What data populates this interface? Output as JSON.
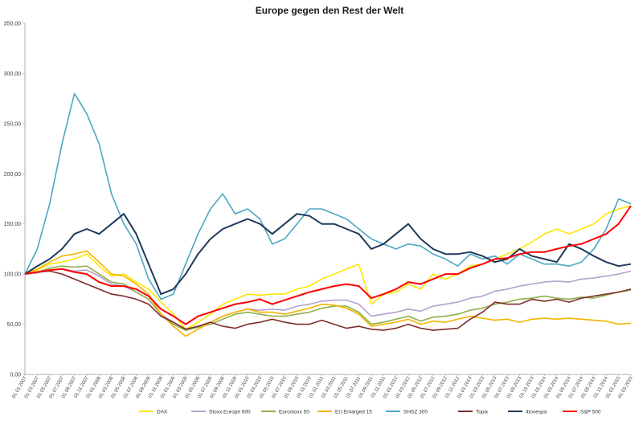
{
  "chart_data": {
    "type": "line",
    "title": "Europe gegen den Rest der Welt",
    "xlabel": "",
    "ylabel": "",
    "ylim": [
      0,
      350
    ],
    "yticks": [
      "0,00",
      "50,00",
      "100,00",
      "150,00",
      "200,00",
      "250,00",
      "300,00",
      "350,00"
    ],
    "x_dates": [
      "01.01.2007",
      "01.03.2007",
      "01.05.2007",
      "01.07.2007",
      "01.09.2007",
      "01.11.2007",
      "01.01.2008",
      "01.03.2008",
      "01.05.2008",
      "01.07.2008",
      "01.09.2008",
      "01.11.2008",
      "01.01.2009",
      "01.03.2009",
      "01.05.2009",
      "01.07.2009",
      "01.09.2009",
      "01.11.2009",
      "01.01.2010",
      "01.03.2010",
      "01.05.2010",
      "01.07.2010",
      "01.09.2010",
      "01.11.2010",
      "01.01.2011",
      "01.03.2011",
      "01.05.2011",
      "01.07.2011",
      "01.09.2011",
      "01.11.2011",
      "01.01.2012",
      "01.03.2012",
      "01.05.2012",
      "01.07.2012",
      "01.09.2012",
      "01.11.2012",
      "01.01.2013",
      "01.03.2013",
      "01.05.2013",
      "01.07.2013",
      "01.09.2013",
      "01.11.2013",
      "01.01.2014",
      "01.03.2014",
      "01.05.2014",
      "01.07.2014",
      "01.09.2014",
      "01.11.2014",
      "01.01.2015",
      "01.03.2015"
    ],
    "grid": false,
    "legend_position": "bottom",
    "series": [
      {
        "name": "DAX",
        "color": "#ffe600",
        "values": [
          100,
          104,
          110,
          112,
          115,
          120,
          108,
          98,
          100,
          92,
          85,
          72,
          60,
          45,
          52,
          60,
          70,
          75,
          80,
          79,
          80,
          80,
          85,
          88,
          95,
          100,
          105,
          110,
          70,
          80,
          82,
          90,
          85,
          100,
          95,
          100,
          108,
          110,
          115,
          120,
          125,
          132,
          140,
          145,
          140,
          145,
          150,
          160,
          165,
          168
        ]
      },
      {
        "name": "Stoxx Europe 600",
        "color": "#b4a2cf",
        "values": [
          100,
          101,
          104,
          105,
          103,
          104,
          98,
          90,
          88,
          82,
          75,
          60,
          52,
          45,
          48,
          52,
          58,
          62,
          65,
          64,
          65,
          64,
          68,
          70,
          73,
          74,
          74,
          70,
          58,
          60,
          62,
          65,
          63,
          68,
          70,
          72,
          76,
          78,
          83,
          85,
          88,
          90,
          92,
          93,
          92,
          95,
          96,
          98,
          100,
          103
        ]
      },
      {
        "name": "Eurostoxx 50",
        "color": "#8fb04a",
        "values": [
          100,
          102,
          106,
          108,
          107,
          108,
          100,
          92,
          90,
          82,
          75,
          60,
          50,
          44,
          47,
          50,
          55,
          60,
          62,
          60,
          58,
          58,
          60,
          62,
          66,
          68,
          68,
          62,
          50,
          52,
          55,
          58,
          53,
          57,
          58,
          60,
          64,
          66,
          70,
          72,
          75,
          76,
          78,
          76,
          75,
          77,
          76,
          79,
          82,
          84
        ]
      },
      {
        "name": "EU Enlarged 15",
        "color": "#f5b400",
        "values": [
          100,
          105,
          112,
          118,
          120,
          123,
          112,
          100,
          98,
          90,
          80,
          60,
          48,
          38,
          45,
          52,
          58,
          62,
          65,
          62,
          62,
          60,
          63,
          66,
          70,
          69,
          66,
          60,
          48,
          50,
          52,
          55,
          50,
          53,
          52,
          55,
          58,
          56,
          54,
          55,
          52,
          55,
          56,
          55,
          56,
          55,
          54,
          53,
          50,
          51
        ]
      },
      {
        "name": "SHSZ 300",
        "color": "#4ba7c4",
        "values": [
          100,
          125,
          170,
          230,
          280,
          260,
          230,
          180,
          150,
          130,
          95,
          75,
          80,
          110,
          140,
          165,
          180,
          160,
          165,
          155,
          130,
          135,
          150,
          165,
          165,
          160,
          155,
          145,
          135,
          130,
          125,
          130,
          128,
          120,
          115,
          108,
          120,
          115,
          118,
          110,
          120,
          115,
          110,
          110,
          108,
          112,
          125,
          145,
          175,
          170
        ]
      },
      {
        "name": "Topix",
        "color": "#7f2d2b",
        "values": [
          100,
          102,
          103,
          100,
          95,
          90,
          85,
          80,
          78,
          75,
          70,
          58,
          52,
          45,
          48,
          52,
          48,
          46,
          50,
          52,
          55,
          52,
          50,
          50,
          54,
          50,
          46,
          48,
          45,
          44,
          46,
          50,
          46,
          44,
          45,
          46,
          55,
          62,
          72,
          70,
          70,
          75,
          73,
          75,
          72,
          76,
          78,
          80,
          82,
          85
        ]
      },
      {
        "name": "Ibovespa",
        "color": "#1f3a5a",
        "values": [
          100,
          108,
          115,
          125,
          140,
          145,
          140,
          150,
          160,
          140,
          110,
          80,
          85,
          100,
          120,
          135,
          145,
          150,
          155,
          150,
          140,
          150,
          160,
          158,
          150,
          150,
          145,
          140,
          125,
          130,
          140,
          150,
          135,
          125,
          120,
          120,
          122,
          118,
          112,
          115,
          125,
          118,
          115,
          112,
          130,
          125,
          118,
          112,
          108,
          110
        ]
      },
      {
        "name": "S&P 500",
        "color": "#ff0000",
        "values": [
          100,
          102,
          104,
          105,
          102,
          100,
          92,
          88,
          88,
          85,
          78,
          65,
          58,
          50,
          58,
          62,
          66,
          70,
          72,
          75,
          70,
          74,
          78,
          82,
          85,
          88,
          90,
          88,
          76,
          80,
          85,
          92,
          90,
          95,
          100,
          100,
          106,
          110,
          115,
          116,
          120,
          122,
          122,
          125,
          128,
          130,
          135,
          140,
          150,
          168
        ]
      }
    ]
  }
}
